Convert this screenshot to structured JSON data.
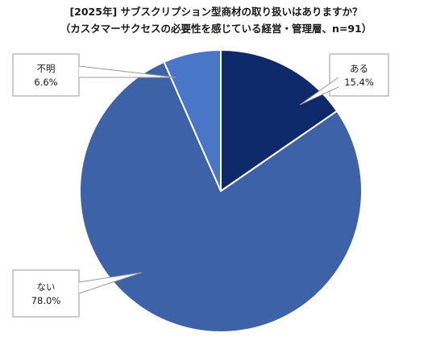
{
  "chart_data": {
    "type": "pie",
    "title": "[2025年] サブスクリプション型商材の取り扱いはありますか？",
    "subtitle": "（カスタマーサクセスの必要性を感じている経営・管理層、n=91）",
    "slices": [
      {
        "label": "ある",
        "value": 15.4,
        "value_text": "15.4%",
        "color": "#0e2a6b"
      },
      {
        "label": "ない",
        "value": 78.0,
        "value_text": "78.0%",
        "color": "#3d62a8"
      },
      {
        "label": "不明",
        "value": 6.6,
        "value_text": "6.6%",
        "color": "#4a76c8"
      }
    ],
    "start_angle": "12 o'clock",
    "direction": "clockwise",
    "label_style": "callout boxes"
  }
}
